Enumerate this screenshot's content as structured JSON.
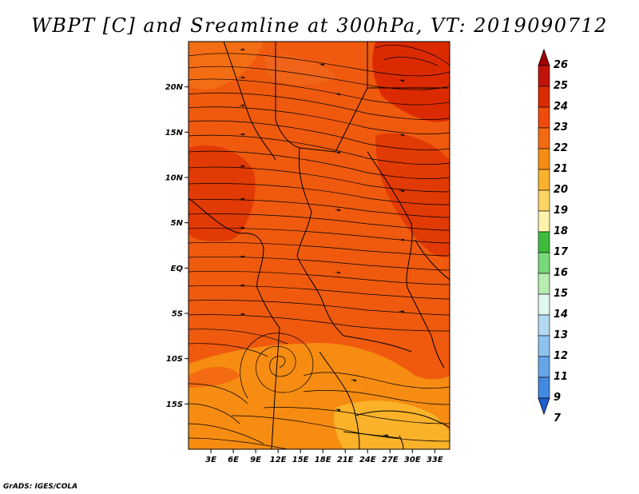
{
  "title": "WBPT [C] and Sreamline at 300hPa, VT: 2019090712",
  "credit": "GrADS: IGES/COLA",
  "map": {
    "lon_range": [
      0,
      35
    ],
    "lat_range": [
      -20,
      25
    ],
    "x_ticks": [
      "3E",
      "6E",
      "9E",
      "12E",
      "15E",
      "18E",
      "21E",
      "24E",
      "27E",
      "30E",
      "33E"
    ],
    "y_ticks": [
      "20N",
      "15N",
      "10N",
      "5N",
      "EQ",
      "5S",
      "10S",
      "15S"
    ],
    "base_color": "#ef5a0f",
    "cyclone_center_note": "cyclonic streamline centre",
    "features": [
      "warm-core-northeast",
      "warm-pocket-west",
      "cooler-south"
    ]
  },
  "colorbar": {
    "levels": [
      "26",
      "25",
      "24",
      "23",
      "22",
      "21",
      "20",
      "19",
      "18",
      "17",
      "16",
      "15",
      "14",
      "13",
      "12",
      "11",
      "9",
      "7"
    ],
    "colors": [
      "#a50000",
      "#c0140a",
      "#dc2a00",
      "#ee4a0a",
      "#f36a12",
      "#f68c12",
      "#f9b22a",
      "#fcd564",
      "#fdf3a8",
      "#3dbc3d",
      "#79d979",
      "#b8edb0",
      "#e1f7f2",
      "#b4d9f2",
      "#8ec2ef",
      "#65a6e9",
      "#418ae0",
      "#1e5fd1"
    ],
    "arrow_top_color": "#a50000",
    "arrow_bottom_color": "#1e5fd1"
  }
}
